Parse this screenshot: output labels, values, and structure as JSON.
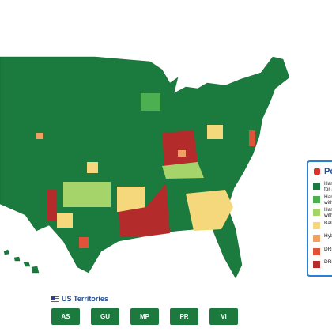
{
  "legend": {
    "title": "Po",
    "items": [
      {
        "lines": [
          "Han",
          "for a"
        ]
      },
      {
        "lines": [
          "Han",
          "with"
        ]
      },
      {
        "lines": [
          "Han",
          "with"
        ]
      },
      {
        "lines": [
          "Ball"
        ]
      },
      {
        "lines": [
          "Hyb"
        ]
      },
      {
        "lines": [
          "DRE"
        ]
      },
      {
        "lines": [
          "DRE"
        ]
      }
    ]
  },
  "territories": {
    "title": "US Territories",
    "buttons": [
      "AS",
      "GU",
      "MP",
      "PR",
      "VI"
    ]
  }
}
